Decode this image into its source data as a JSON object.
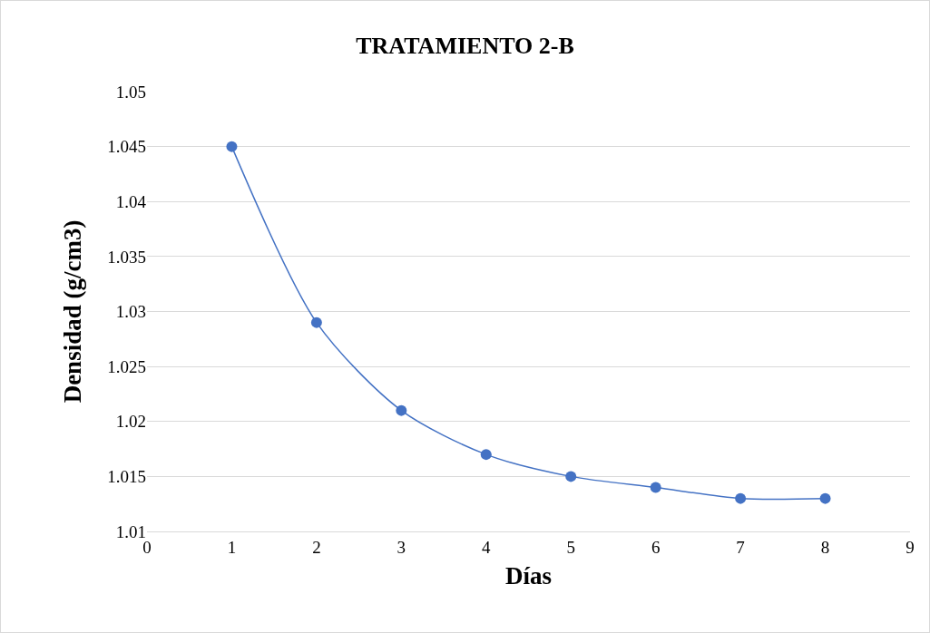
{
  "chart_data": {
    "type": "line",
    "title": "TRATAMIENTO 2-B",
    "xlabel": "Días",
    "ylabel": "Densidad (g/cm3)",
    "x": [
      1,
      2,
      3,
      4,
      5,
      6,
      7,
      8
    ],
    "series": [
      {
        "color": "#4472c4",
        "values": [
          1.045,
          1.029,
          1.021,
          1.017,
          1.015,
          1.014,
          1.013,
          1.013
        ]
      }
    ],
    "xlim": [
      0,
      9
    ],
    "xticks": [
      0,
      1,
      2,
      3,
      4,
      5,
      6,
      7,
      8,
      9
    ],
    "ylim": [
      1.01,
      1.05
    ],
    "yticks": [
      1.01,
      1.015,
      1.02,
      1.025,
      1.03,
      1.035,
      1.04,
      1.045,
      1.05
    ],
    "grid": "y",
    "marker": "circle",
    "line_style": "solid"
  }
}
